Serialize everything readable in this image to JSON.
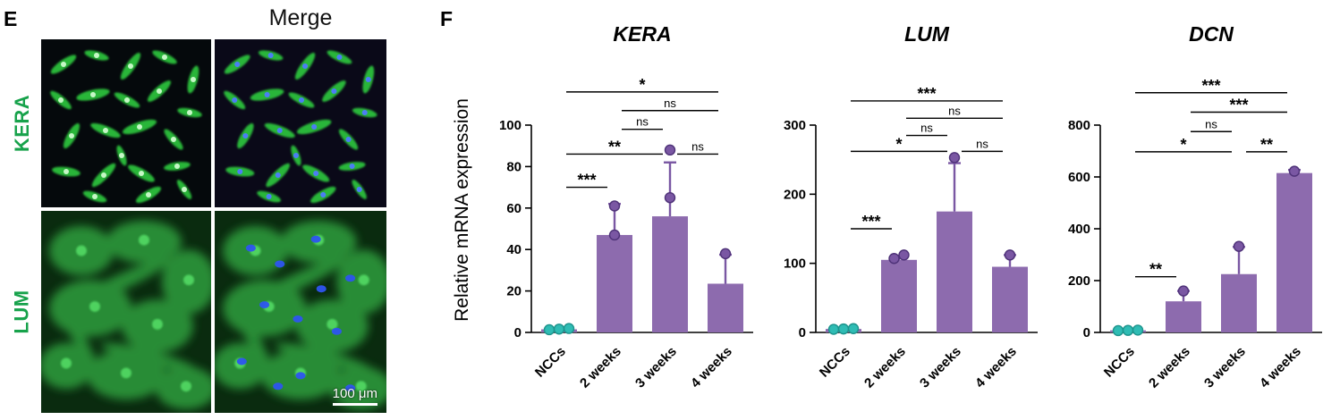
{
  "panel_e": {
    "letter": "E",
    "merge_label": "Merge",
    "row_labels": [
      "KERA",
      "LUM"
    ],
    "scale_bar_label": "100 μm",
    "row_label_color": "#17a24b"
  },
  "panel_f": {
    "letter": "F",
    "y_axis_label": "Relative mRNA expression"
  },
  "colors": {
    "bar": "#8d6bae",
    "error_bar": "#7a57a3",
    "dot": "#7a57a3",
    "dot_edge": "#4e3278",
    "ncc_dot": "#2fbcb4",
    "ncc_dot_edge": "#1d938c",
    "axis": "#000000",
    "significance_line": "#000000"
  },
  "chart_data": [
    {
      "type": "bar",
      "title": "KERA",
      "categories": [
        "NCCs",
        "2 weeks",
        "3 weeks",
        "4 weeks"
      ],
      "values": [
        1.5,
        47,
        56,
        23.5
      ],
      "errors_up": [
        0,
        15,
        26,
        14
      ],
      "points": [
        [
          1.3,
          1.6,
          1.9
        ],
        [
          47,
          61
        ],
        [
          65,
          88
        ],
        [
          38
        ]
      ],
      "ylim": [
        0,
        100
      ],
      "yticks": [
        0,
        20,
        40,
        60,
        80,
        100
      ],
      "brackets": [
        {
          "from": 0,
          "to": 1,
          "label": "***",
          "y": 70
        },
        {
          "from": 0,
          "to": 2,
          "label": "**",
          "y": 86
        },
        {
          "from": 2,
          "to": 3,
          "label": "ns",
          "y": 86
        },
        {
          "from": 1,
          "to": 2,
          "label": "ns",
          "y": 98
        },
        {
          "from": 1,
          "to": 3,
          "label": "ns",
          "y": 107
        },
        {
          "from": 0,
          "to": 3,
          "label": "*",
          "y": 116
        }
      ]
    },
    {
      "type": "bar",
      "title": "LUM",
      "categories": [
        "NCCs",
        "2 weeks",
        "3 weeks",
        "4 weeks"
      ],
      "values": [
        5,
        105,
        175,
        95
      ],
      "errors_up": [
        0,
        6,
        70,
        17
      ],
      "points": [
        [
          4.5,
          5,
          5.5
        ],
        [
          107,
          112
        ],
        [
          253
        ],
        [
          112
        ]
      ],
      "ylim": [
        0,
        300
      ],
      "yticks": [
        0,
        100,
        200,
        300
      ],
      "brackets": [
        {
          "from": 0,
          "to": 1,
          "label": "***",
          "y": 150
        },
        {
          "from": 0,
          "to": 2,
          "label": "*",
          "y": 262
        },
        {
          "from": 2,
          "to": 3,
          "label": "ns",
          "y": 262
        },
        {
          "from": 1,
          "to": 2,
          "label": "ns",
          "y": 285
        },
        {
          "from": 1,
          "to": 3,
          "label": "ns",
          "y": 310
        },
        {
          "from": 0,
          "to": 3,
          "label": "***",
          "y": 335
        }
      ]
    },
    {
      "type": "bar",
      "title": "DCN",
      "categories": [
        "NCCs",
        "2 weeks",
        "3 weeks",
        "4 weeks"
      ],
      "values": [
        8,
        120,
        225,
        615
      ],
      "errors_up": [
        0,
        40,
        105,
        12
      ],
      "points": [
        [
          7,
          8,
          9
        ],
        [
          160
        ],
        [
          332
        ],
        [
          622
        ]
      ],
      "ylim": [
        0,
        800
      ],
      "yticks": [
        0,
        200,
        400,
        600,
        800
      ],
      "brackets": [
        {
          "from": 0,
          "to": 1,
          "label": "**",
          "y": 215
        },
        {
          "from": 0,
          "to": 2,
          "label": "*",
          "y": 697
        },
        {
          "from": 2,
          "to": 3,
          "label": "**",
          "y": 697
        },
        {
          "from": 1,
          "to": 2,
          "label": "ns",
          "y": 775
        },
        {
          "from": 1,
          "to": 3,
          "label": "***",
          "y": 850
        },
        {
          "from": 0,
          "to": 3,
          "label": "***",
          "y": 925
        }
      ]
    }
  ]
}
